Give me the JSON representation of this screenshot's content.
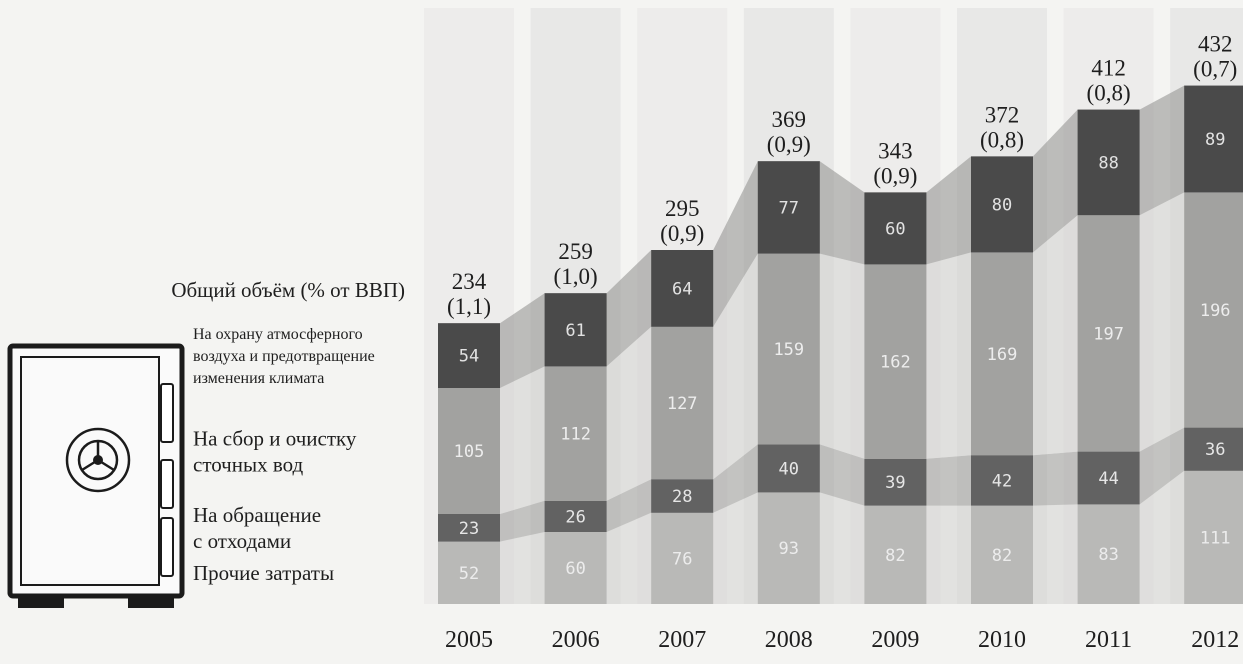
{
  "chart_data": {
    "type": "bar",
    "stacked": true,
    "categories": [
      "2005",
      "2006",
      "2007",
      "2008",
      "2009",
      "2010",
      "2011",
      "2012"
    ],
    "totals": [
      234,
      259,
      295,
      369,
      343,
      372,
      412,
      432
    ],
    "totals_pct_gdp": [
      "(1,1)",
      "(1,0)",
      "(0,9)",
      "(0,9)",
      "(0,9)",
      "(0,8)",
      "(0,8)",
      "(0,7)"
    ],
    "total_label": "Общий объём (% от ВВП)",
    "series": [
      {
        "name": "Прочие затраты",
        "values": [
          52,
          60,
          76,
          93,
          82,
          82,
          83,
          111
        ],
        "color": "#b9b9b7",
        "text_color": "#ececec"
      },
      {
        "name": "На обращение с отходами",
        "values": [
          23,
          26,
          28,
          40,
          39,
          42,
          44,
          36
        ],
        "color": "#626262",
        "text_color": "#e6e6e6"
      },
      {
        "name": "На сбор и очистку сточных вод",
        "values": [
          105,
          112,
          127,
          159,
          162,
          169,
          197,
          196
        ],
        "color": "#a2a2a0",
        "text_color": "#ededed"
      },
      {
        "name": "На охрану атмосферного воздуха и предотвращение изменения климата",
        "values": [
          54,
          61,
          64,
          77,
          60,
          80,
          88,
          89
        ],
        "color": "#4a4a4a",
        "text_color": "#e2e2e2"
      }
    ],
    "legend_lines": [
      [
        "Прочие затраты"
      ],
      [
        "На обращение",
        "с отходами"
      ],
      [
        "На сбор и очистку",
        "сточных вод"
      ],
      [
        "На охрану атмосферного",
        "воздуха и предотвращение",
        "изменения климата"
      ]
    ],
    "axis_label_color": "#1e1e1e",
    "legend": "left",
    "grid": false,
    "decorative_icon": "safe-icon"
  }
}
